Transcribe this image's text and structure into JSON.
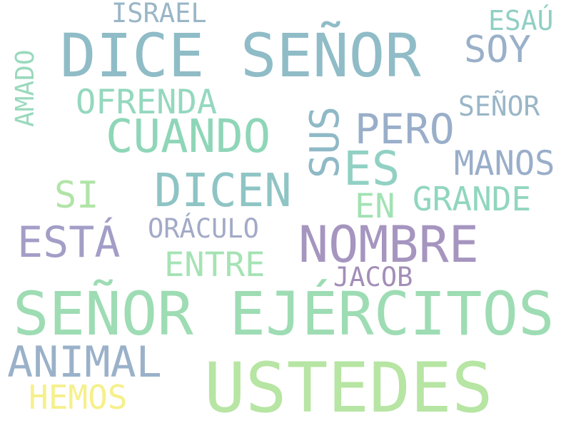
{
  "words": [
    {
      "text": "DICE SEÑOR",
      "color": "#8fbcc7"
    },
    {
      "text": "SEÑOR EJÉRCITOS",
      "color": "#9edcb4"
    },
    {
      "text": "USTEDES",
      "color": "#b7e5a3"
    },
    {
      "text": "NOMBRE",
      "color": "#a595bf"
    },
    {
      "text": "CUANDO",
      "color": "#8fd6b8"
    },
    {
      "text": "DICEN",
      "color": "#8fc4c4"
    },
    {
      "text": "ESTÁ",
      "color": "#a39ec7"
    },
    {
      "text": "ANIMAL",
      "color": "#9ab1c9"
    },
    {
      "text": "ES",
      "color": "#91d1c4"
    },
    {
      "text": "PERO",
      "color": "#99aec9"
    },
    {
      "text": "MANOS",
      "color": "#99aec9"
    },
    {
      "text": "GRANDE",
      "color": "#91d6bf"
    },
    {
      "text": "OFRENDA",
      "color": "#94d8bf"
    },
    {
      "text": "SOY",
      "color": "#9ab0c9"
    },
    {
      "text": "SI",
      "color": "#b1e4a8"
    },
    {
      "text": "HEMOS",
      "color": "#f5f08a"
    },
    {
      "text": "ENTRE",
      "color": "#a5e3b4"
    },
    {
      "text": "ORÁCULO",
      "color": "#a3aac7"
    },
    {
      "text": "JACOB",
      "color": "#a38eb8"
    },
    {
      "text": "EN",
      "color": "#a2e2b4"
    },
    {
      "text": "SEÑOR",
      "color": "#9ab6c7"
    },
    {
      "text": "ISRAEL",
      "color": "#9ab6c7"
    },
    {
      "text": "ESAÚ",
      "color": "#91cfc4"
    },
    {
      "text": "SUS",
      "color": "#8fb9c6"
    },
    {
      "text": "AMADO",
      "color": "#9ad9bd"
    }
  ]
}
